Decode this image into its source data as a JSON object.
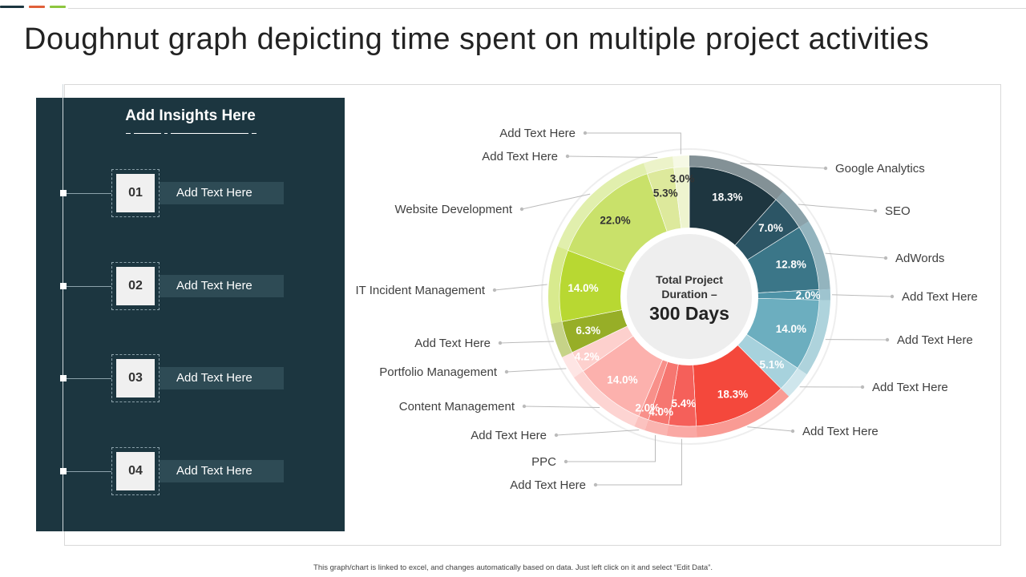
{
  "page": {
    "title": "Doughnut graph depicting time spent on multiple project activities",
    "footnote": "This graph/chart is linked to excel, and changes automatically based on data. Just left click on it and select “Edit Data”."
  },
  "theme": {
    "panel_bg": "#1c3640",
    "accents": [
      "#1c3640",
      "#e0603a",
      "#8dc63f"
    ]
  },
  "insights": {
    "heading": "Add Insights Here",
    "items": [
      {
        "number": "01",
        "label": "Add Text Here"
      },
      {
        "number": "02",
        "label": "Add Text Here"
      },
      {
        "number": "03",
        "label": "Add Text Here"
      },
      {
        "number": "04",
        "label": "Add Text Here"
      }
    ]
  },
  "chart_data": {
    "type": "pie",
    "variant": "doughnut",
    "center_label": {
      "line1": "Total Project",
      "line2": "Duration –",
      "value": "300 Days"
    },
    "value_format": "percent",
    "slices": [
      {
        "label": "Google Analytics",
        "value": 18.3,
        "display": "18.3%",
        "color": "#1e3640"
      },
      {
        "label": "SEO",
        "value": 7.0,
        "display": "7.0%",
        "color": "#2c5565"
      },
      {
        "label": "AdWords",
        "value": 12.8,
        "display": "12.8%",
        "color": "#3b7688"
      },
      {
        "label": "Add Text Here",
        "value": 2.0,
        "display": "2.0%",
        "color": "#4e93a7"
      },
      {
        "label": "Add Text Here",
        "value": 14.0,
        "display": "14.0%",
        "color": "#6caebf"
      },
      {
        "label": "Add Text Here",
        "value": 5.1,
        "display": "5.1%",
        "color": "#a7d2dd"
      },
      {
        "label": "Add Text Here",
        "value": 18.3,
        "display": "18.3%",
        "color": "#f4483c"
      },
      {
        "label": "Add Text Here",
        "value": 5.4,
        "display": "5.4%",
        "color": "#f5605a"
      },
      {
        "label": "PPC",
        "value": 4.0,
        "display": "4.0%",
        "color": "#f67670"
      },
      {
        "label": "Add Text Here",
        "value": 2.0,
        "display": "2.0%",
        "color": "#f8908a"
      },
      {
        "label": "Content Management",
        "value": 14.0,
        "display": "14.0%",
        "color": "#fcb1ad"
      },
      {
        "label": "Portfolio Management",
        "value": 4.2,
        "display": "4.2%",
        "color": "#fdd0cd"
      },
      {
        "label": "Add Text Here",
        "value": 6.3,
        "display": "6.3%",
        "color": "#97ae27"
      },
      {
        "label": "IT Incident Management",
        "value": 14.0,
        "display": "14.0%",
        "color": "#b8d832"
      },
      {
        "label": "Website Development",
        "value": 22.0,
        "display": "22.0%",
        "color": "#c9e16a"
      },
      {
        "label": "Add Text Here",
        "value": 5.3,
        "display": "5.3%",
        "color": "#dde99c"
      },
      {
        "label": "Add Text Here",
        "value": 3.0,
        "display": "3.0%",
        "color": "#eef4cf"
      }
    ]
  }
}
